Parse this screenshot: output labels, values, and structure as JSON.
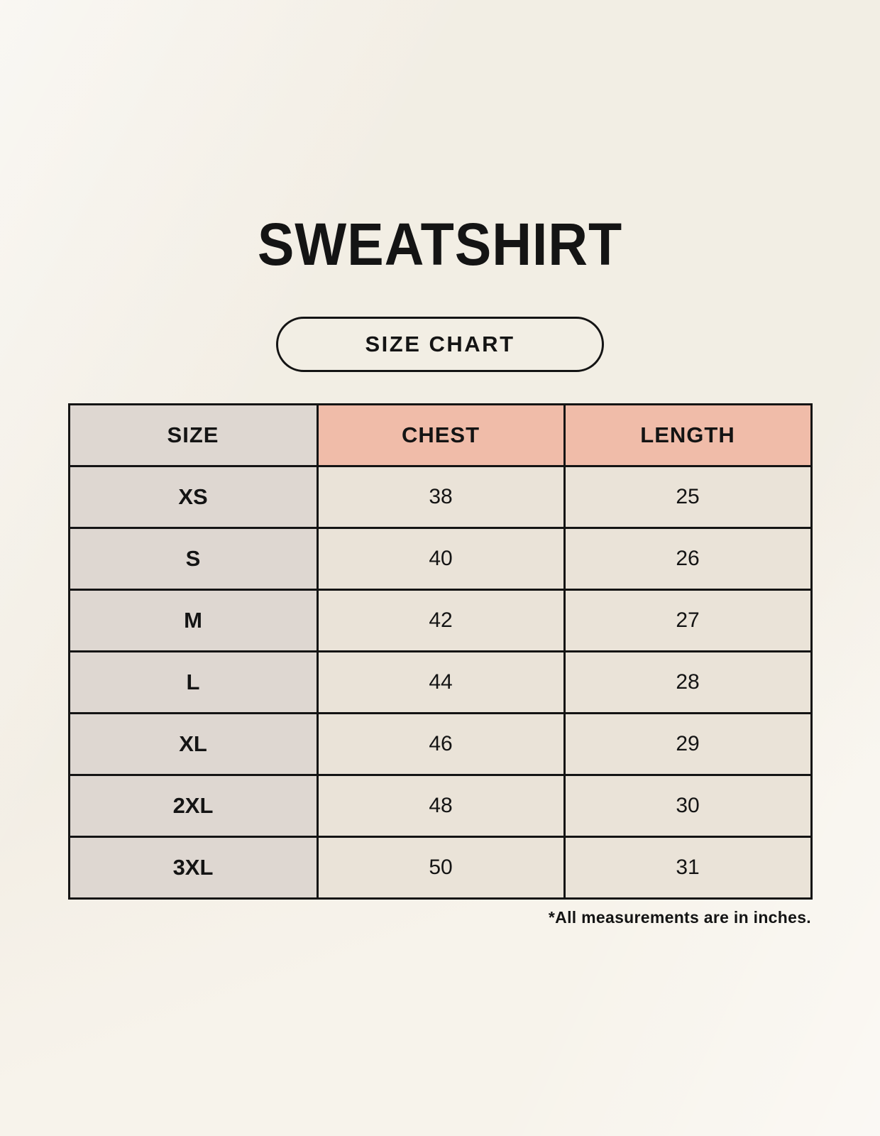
{
  "header": {
    "title": "SWEATSHIRT",
    "badge_label": "SIZE CHART"
  },
  "table": {
    "columns": [
      "SIZE",
      "CHEST",
      "LENGTH"
    ],
    "rows": [
      [
        "XS",
        "38",
        "25"
      ],
      [
        "S",
        "40",
        "26"
      ],
      [
        "M",
        "42",
        "27"
      ],
      [
        "L",
        "44",
        "28"
      ],
      [
        "XL",
        "46",
        "29"
      ],
      [
        "2XL",
        "48",
        "30"
      ],
      [
        "3XL",
        "50",
        "31"
      ]
    ]
  },
  "footnote": "*All measurements are in inches.",
  "colors": {
    "background": "#F7F3EB",
    "header_accent": "#F0BCA9",
    "size_column": "#DED7D1",
    "data_cell": "#EAE3D8",
    "border": "#141414",
    "text": "#141414"
  },
  "chart_data": {
    "type": "table",
    "title": "SWEATSHIRT",
    "subtitle": "SIZE CHART",
    "columns": [
      "SIZE",
      "CHEST",
      "LENGTH"
    ],
    "rows": [
      [
        "XS",
        38,
        25
      ],
      [
        "S",
        40,
        26
      ],
      [
        "M",
        42,
        27
      ],
      [
        "L",
        44,
        28
      ],
      [
        "XL",
        46,
        29
      ],
      [
        "2XL",
        48,
        30
      ],
      [
        "3XL",
        50,
        31
      ]
    ],
    "units": "inches",
    "annotations": [
      "*All measurements are in inches."
    ]
  }
}
